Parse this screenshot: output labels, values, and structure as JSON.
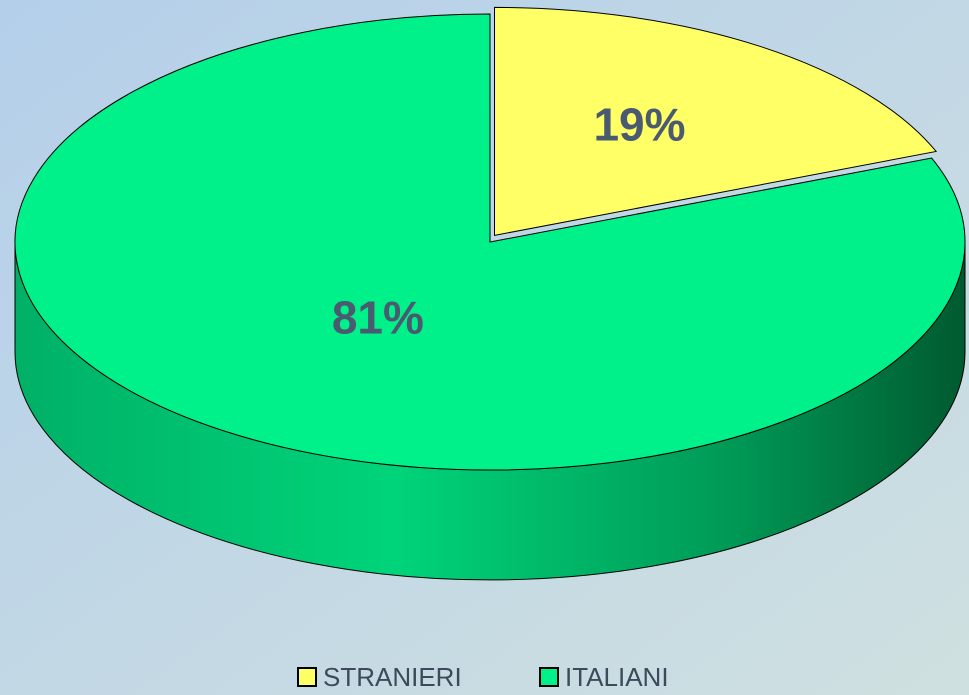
{
  "chart_data": {
    "type": "pie",
    "categories": [
      "STRANIERI",
      "ITALIANI"
    ],
    "values": [
      19,
      81
    ],
    "value_labels": [
      "19%",
      "81%"
    ],
    "colors": [
      "#ffff66",
      "#00f08a"
    ],
    "legend": "bottom"
  }
}
